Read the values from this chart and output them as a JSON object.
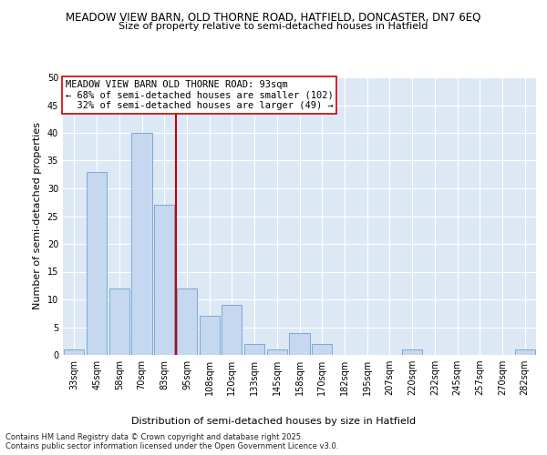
{
  "title_line1": "MEADOW VIEW BARN, OLD THORNE ROAD, HATFIELD, DONCASTER, DN7 6EQ",
  "title_line2": "Size of property relative to semi-detached houses in Hatfield",
  "xlabel": "Distribution of semi-detached houses by size in Hatfield",
  "ylabel": "Number of semi-detached properties",
  "categories": [
    "33sqm",
    "45sqm",
    "58sqm",
    "70sqm",
    "83sqm",
    "95sqm",
    "108sqm",
    "120sqm",
    "133sqm",
    "145sqm",
    "158sqm",
    "170sqm",
    "182sqm",
    "195sqm",
    "207sqm",
    "220sqm",
    "232sqm",
    "245sqm",
    "257sqm",
    "270sqm",
    "282sqm"
  ],
  "values": [
    1,
    33,
    12,
    40,
    27,
    12,
    7,
    9,
    2,
    1,
    4,
    2,
    0,
    0,
    0,
    1,
    0,
    0,
    0,
    0,
    1
  ],
  "bar_color": "#c5d8f0",
  "bar_edge_color": "#7aaad0",
  "vline_color": "#cc0000",
  "annotation_text": "MEADOW VIEW BARN OLD THORNE ROAD: 93sqm\n← 68% of semi-detached houses are smaller (102)\n  32% of semi-detached houses are larger (49) →",
  "annotation_box_color": "#ffffff",
  "annotation_box_edge": "#cc0000",
  "ylim": [
    0,
    50
  ],
  "yticks": [
    0,
    5,
    10,
    15,
    20,
    25,
    30,
    35,
    40,
    45,
    50
  ],
  "plot_bg_color": "#dde8f5",
  "fig_bg_color": "#ffffff",
  "footer_line1": "Contains HM Land Registry data © Crown copyright and database right 2025.",
  "footer_line2": "Contains public sector information licensed under the Open Government Licence v3.0.",
  "title_fontsize": 8.5,
  "subtitle_fontsize": 8,
  "axis_label_fontsize": 8,
  "tick_fontsize": 7,
  "annotation_fontsize": 7.5,
  "footer_fontsize": 6,
  "vline_index": 5
}
